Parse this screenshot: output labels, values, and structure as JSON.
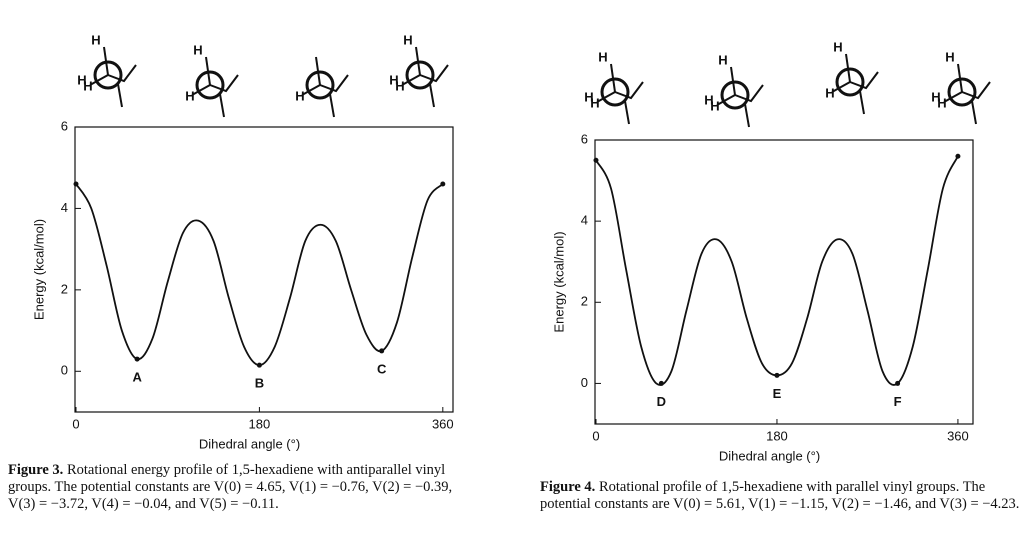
{
  "chart_data": [
    {
      "type": "line",
      "y_label": "Energy (kcal/mol)",
      "x_label": "Dihedral angle (°)",
      "conformer_labels": [
        [
          "H",
          "H",
          "H"
        ],
        [
          "H",
          "H"
        ],
        [
          "H"
        ],
        [
          "H",
          "H",
          "H"
        ]
      ],
      "x": [
        0,
        15,
        30,
        45,
        60,
        75,
        90,
        105,
        120,
        135,
        150,
        165,
        180,
        195,
        210,
        225,
        240,
        255,
        270,
        285,
        300,
        315,
        330,
        345,
        360
      ],
      "series": [
        {
          "color": "#111111",
          "values": [
            4.6,
            4.0,
            2.6,
            1.0,
            0.3,
            0.8,
            2.2,
            3.4,
            3.7,
            3.2,
            1.8,
            0.6,
            0.15,
            0.6,
            1.8,
            3.2,
            3.6,
            3.2,
            2.0,
            0.9,
            0.5,
            1.2,
            2.8,
            4.2,
            4.6
          ]
        }
      ],
      "annotations": [
        {
          "text": "A",
          "x": 60,
          "y": 0.3
        },
        {
          "text": "B",
          "x": 180,
          "y": 0.15
        },
        {
          "text": "C",
          "x": 300,
          "y": 0.5
        }
      ],
      "xlim": [
        0,
        370
      ],
      "xticks": [
        0,
        180,
        360
      ],
      "ylim": [
        -1,
        6
      ],
      "yticks": [
        0,
        2,
        4,
        6
      ],
      "caption_label": "Figure 3.",
      "caption": "Rotational energy profile of 1,5-hexadiene with antiparallel vinyl groups.  The potential constants are V(0) = 4.65, V(1) = −0.76, V(2) = −0.39, V(3) = −3.72, V(4) = −0.04, and V(5) = −0.11."
    },
    {
      "type": "line",
      "y_label": "Energy (kcal/mol)",
      "x_label": "Dihedral angle (°)",
      "conformer_labels": [
        [
          "H",
          "H",
          "H"
        ],
        [
          "H",
          "H",
          "H"
        ],
        [
          "H",
          "H"
        ],
        [
          "H",
          "H",
          "H"
        ]
      ],
      "x": [
        0,
        15,
        30,
        45,
        60,
        75,
        90,
        105,
        120,
        135,
        150,
        165,
        180,
        195,
        210,
        225,
        240,
        255,
        270,
        285,
        300,
        315,
        330,
        345,
        360
      ],
      "series": [
        {
          "color": "#111111",
          "values": [
            5.5,
            4.8,
            2.8,
            0.9,
            0.0,
            0.3,
            1.8,
            3.2,
            3.55,
            3.0,
            1.6,
            0.5,
            0.2,
            0.5,
            1.6,
            3.0,
            3.55,
            3.2,
            1.8,
            0.3,
            0.0,
            0.9,
            2.8,
            4.8,
            5.6
          ]
        }
      ],
      "annotations": [
        {
          "text": "D",
          "x": 65,
          "y": 0.0
        },
        {
          "text": "E",
          "x": 180,
          "y": 0.2
        },
        {
          "text": "F",
          "x": 300,
          "y": 0.0
        }
      ],
      "xlim": [
        0,
        375
      ],
      "xticks": [
        0,
        180,
        360
      ],
      "ylim": [
        -1,
        6
      ],
      "yticks": [
        0,
        2,
        4,
        6
      ],
      "caption_label": "Figure 4.",
      "caption": "Rotational profile of 1,5-hexadiene with parallel vinyl groups. The potential constants are V(0) = 5.61, V(1) = −1.15, V(2) = −1.46, and V(3) = −4.23."
    }
  ]
}
